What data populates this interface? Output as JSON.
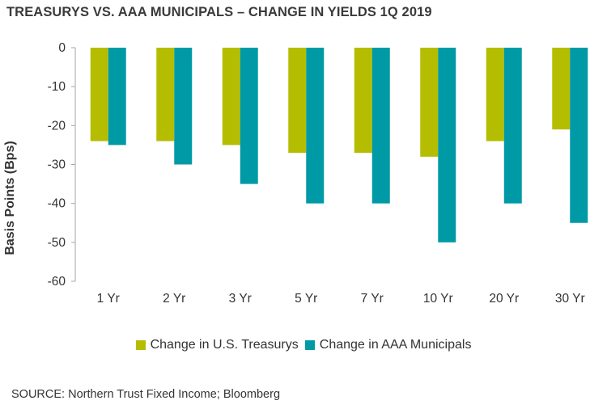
{
  "title": "TREASURYS VS. AAA MUNICIPALS – CHANGE IN YIELDS 1Q 2019",
  "source": "SOURCE: Northern Trust Fixed Income; Bloomberg",
  "colors": {
    "treasurys": "#b5bd00",
    "municipals": "#009aa6",
    "axis": "#a6a6a6"
  },
  "chart_data": {
    "type": "bar",
    "title": "TREASURYS VS. AAA MUNICIPALS – CHANGE IN YIELDS 1Q 2019",
    "xlabel": "",
    "ylabel": "Basis Points (Bps)",
    "ylim": [
      -60,
      0
    ],
    "yticks": [
      0,
      -10,
      -20,
      -30,
      -40,
      -50,
      -60
    ],
    "grid": false,
    "legend_position": "bottom",
    "categories": [
      "1 Yr",
      "2 Yr",
      "3 Yr",
      "5 Yr",
      "7 Yr",
      "10 Yr",
      "20 Yr",
      "30 Yr"
    ],
    "series": [
      {
        "name": "Change in U.S. Treasurys",
        "values": [
          -24,
          -24,
          -25,
          -27,
          -27,
          -28,
          -24,
          -21
        ]
      },
      {
        "name": "Change in AAA Municipals",
        "values": [
          -25,
          -30,
          -35,
          -40,
          -40,
          -50,
          -40,
          -45
        ]
      }
    ]
  }
}
